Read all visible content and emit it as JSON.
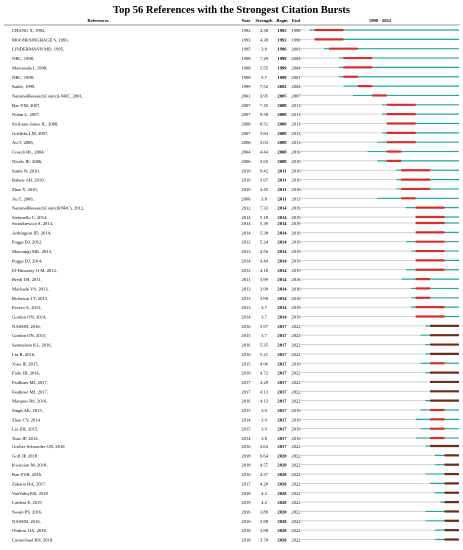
{
  "title": "Top 56 References with the Strongest Citation Bursts",
  "chart_data": {
    "type": "table",
    "columns": [
      "References",
      "Year",
      "Strength",
      "Begin",
      "End",
      "1990 - 2022"
    ],
    "timeline_range": [
      1990,
      2022
    ],
    "colors": {
      "period": "#26a69a",
      "burst": "#d32f2f",
      "burst_late": "#6d2b1b",
      "pre": "#c8c8c8"
    },
    "groups": [
      [
        {
          "ref": "CHANG X, 1992,",
          "year": 1992,
          "strength": 4.38,
          "begin": 1993,
          "end": 1998
        },
        {
          "ref": "MOONESINGHAGE S, 1993,",
          "year": 1993,
          "strength": 4.38,
          "begin": 1993,
          "end": 1998
        },
        {
          "ref": "LINDERMANN MD, 1995,",
          "year": 1995,
          "strength": 3.8,
          "begin": 1996,
          "end": 2001
        },
        {
          "ref": "NRC, 1998,",
          "year": 1998,
          "strength": 7.29,
          "begin": 1999,
          "end": 2004
        },
        {
          "ref": "Mavroudis I, 1998,",
          "year": 1998,
          "strength": 5.55,
          "begin": 1999,
          "end": 2004
        },
        {
          "ref": "NRC, 1998,",
          "year": 1998,
          "strength": 5.7,
          "begin": 1999,
          "end": 2001
        },
        {
          "ref": "Suttle, 1999,",
          "year": 1999,
          "strength": 7.52,
          "begin": 2002,
          "end": 2004
        },
        {
          "ref": "NationalResearchCouncil-NRC, 2001,",
          "year": 2001,
          "strength": 3.95,
          "begin": 2005,
          "end": 2007
        },
        {
          "ref": "Bao YM, 2007,",
          "year": 2007,
          "strength": 7.45,
          "begin": 2008,
          "end": 2013
        },
        {
          "ref": "Nolan L, 2007,",
          "year": 2007,
          "strength": 9.58,
          "begin": 2008,
          "end": 2013
        },
        {
          "ref": "Siciliano-Jones JL, 2008,",
          "year": 2008,
          "strength": 8.51,
          "begin": 2008,
          "end": 2013
        },
        {
          "ref": "Griffiths LM, 2007,",
          "year": 2007,
          "strength": 5.84,
          "begin": 2008,
          "end": 2013
        },
        {
          "ref": "Au T, 2006,",
          "year": 2006,
          "strength": 5.03,
          "begin": 2008,
          "end": 2013
        },
        {
          "ref": "Creech BL, 2004,",
          "year": 2004,
          "strength": 4.44,
          "begin": 2008,
          "end": 2010
        },
        {
          "ref": "Nicols JE, 2006,",
          "year": 2006,
          "strength": 3.65,
          "begin": 2008,
          "end": 2010
        },
        {
          "ref": "Suttle N, 2010,",
          "year": 2010,
          "strength": 9.42,
          "begin": 2011,
          "end": 2016
        },
        {
          "ref": "Rahaw AB, 2010,",
          "year": 2010,
          "strength": 3.97,
          "begin": 2011,
          "end": 2016
        },
        {
          "ref": "Zhao Y, 2010,",
          "year": 2010,
          "strength": 4.45,
          "begin": 2011,
          "end": 2016
        },
        {
          "ref": "Au T, 2006,",
          "year": 2006,
          "strength": 3.8,
          "begin": 2011,
          "end": 2013
        },
        {
          "ref": "NationalResearchCouncil(NRC), 2012,",
          "year": 2012,
          "strength": 7.33,
          "begin": 2014,
          "end": 2019
        },
        {
          "ref": "Stefanello C, 2014,",
          "year": 2014,
          "strength": 5.18,
          "begin": 2014,
          "end": 2019
        }
      ],
      [
        {
          "ref": "Swiatkiewicz S, 2014,",
          "year": 2014,
          "strength": 5.39,
          "begin": 2014,
          "end": 2019
        },
        {
          "ref": "Arthington JD, 2014,",
          "year": 2014,
          "strength": 5.38,
          "begin": 2014,
          "end": 2019
        },
        {
          "ref": "Pogge DJ, 2012,",
          "year": 2012,
          "strength": 5.34,
          "begin": 2014,
          "end": 2019
        },
        {
          "ref": "Mavoungi MK, 2013,",
          "year": 2013,
          "strength": 4.56,
          "begin": 2014,
          "end": 2019
        },
        {
          "ref": "Pogge DJ, 2014,",
          "year": 2014,
          "strength": 4.44,
          "begin": 2014,
          "end": 2019
        },
        {
          "ref": "El-Husseiny O M, 2012,",
          "year": 2012,
          "strength": 4.18,
          "begin": 2014,
          "end": 2019
        },
        {
          "ref": "Bredt TH, 2011,",
          "year": 2011,
          "strength": 3.99,
          "begin": 2014,
          "end": 2016
        },
        {
          "ref": "Machado VS, 2013,",
          "year": 2013,
          "strength": 3.99,
          "begin": 2014,
          "end": 2016
        },
        {
          "ref": "Richeson J T, 2013,",
          "year": 2013,
          "strength": 3.99,
          "begin": 2014,
          "end": 2016
        },
        {
          "ref": "Favero A, 2013,",
          "year": 2013,
          "strength": 3.7,
          "begin": 2014,
          "end": 2019
        },
        {
          "ref": "Gordon ON, 2014,",
          "year": 2014,
          "strength": 3.7,
          "begin": 2014,
          "end": 2019
        },
        {
          "ref": "NASEM, 2016,",
          "year": 2016,
          "strength": 3.97,
          "begin": 2017,
          "end": 2022
        },
        {
          "ref": "Gordon ON, 2015,",
          "year": 2015,
          "strength": 3.7,
          "begin": 2017,
          "end": 2022
        },
        {
          "ref": "Samuelsen KL, 2016,",
          "year": 2016,
          "strength": 5.35,
          "begin": 2017,
          "end": 2022
        },
        {
          "ref": "Liu B, 2016,",
          "year": 2016,
          "strength": 5.21,
          "begin": 2017,
          "end": 2022
        },
        {
          "ref": "Xiao JF, 2015,",
          "year": 2015,
          "strength": 4.96,
          "begin": 2017,
          "end": 2019
        },
        {
          "ref": "Fiole JB, 2016,",
          "year": 2016,
          "strength": 4.72,
          "begin": 2017,
          "end": 2022
        },
        {
          "ref": "Faulkner MJ, 2017,",
          "year": 2017,
          "strength": 4.28,
          "begin": 2017,
          "end": 2022
        },
        {
          "ref": "Faulkner MJ, 2017,",
          "year": 2017,
          "strength": 4.13,
          "begin": 2017,
          "end": 2022
        },
        {
          "ref": "Marques RS, 2016,",
          "year": 2016,
          "strength": 4.12,
          "begin": 2017,
          "end": 2022
        },
        {
          "ref": "Singh AK, 2015,",
          "year": 2015,
          "strength": 3.9,
          "begin": 2017,
          "end": 2019
        },
        {
          "ref": "Zhao CY, 2014",
          "year": 2014,
          "strength": 3.9,
          "begin": 2017,
          "end": 2019
        },
        {
          "ref": "Liu ZH, 2015,",
          "year": 2015,
          "strength": 3.9,
          "begin": 2017,
          "end": 2019
        },
        {
          "ref": "Xiao JF, 2014,",
          "year": 2014,
          "strength": 3.8,
          "begin": 2017,
          "end": 2019
        }
      ],
      [
        {
          "ref": "Grolier-Schroeder GN, 2016",
          "year": 2016,
          "strength": 3.63,
          "begin": 2017,
          "end": 2022
        },
        {
          "ref": "Goff JP, 2018",
          "year": 2018,
          "strength": 6.64,
          "begin": 2020,
          "end": 2022
        },
        {
          "ref": "Kwiecien M, 2018,",
          "year": 2018,
          "strength": 4.57,
          "begin": 2020,
          "end": 2022
        },
        {
          "ref": "Rao SVR, 2016,",
          "year": 2016,
          "strength": 4.37,
          "begin": 2020,
          "end": 2022
        },
        {
          "ref": "Zakaria HA, 2017",
          "year": 2017,
          "strength": 4.28,
          "begin": 2020,
          "end": 2022
        },
        {
          "ref": "VanValin KR, 2018",
          "year": 2018,
          "strength": 4.2,
          "begin": 2020,
          "end": 2022
        },
        {
          "ref": "Caldera E, 2019",
          "year": 2019,
          "strength": 4.2,
          "begin": 2020,
          "end": 2022
        },
        {
          "ref": "Swain PS, 2016,",
          "year": 2016,
          "strength": 3.88,
          "begin": 2020,
          "end": 2022
        },
        {
          "ref": "NASEM, 2016,",
          "year": 2016,
          "strength": 3.88,
          "begin": 2020,
          "end": 2022
        },
        {
          "ref": "Olukosi OA, 2018,",
          "year": 2018,
          "strength": 3.88,
          "begin": 2020,
          "end": 2022
        },
        {
          "ref": "Carmichael RN, 2018,",
          "year": 2018,
          "strength": 3.78,
          "begin": 2020,
          "end": 2022
        }
      ]
    ]
  }
}
